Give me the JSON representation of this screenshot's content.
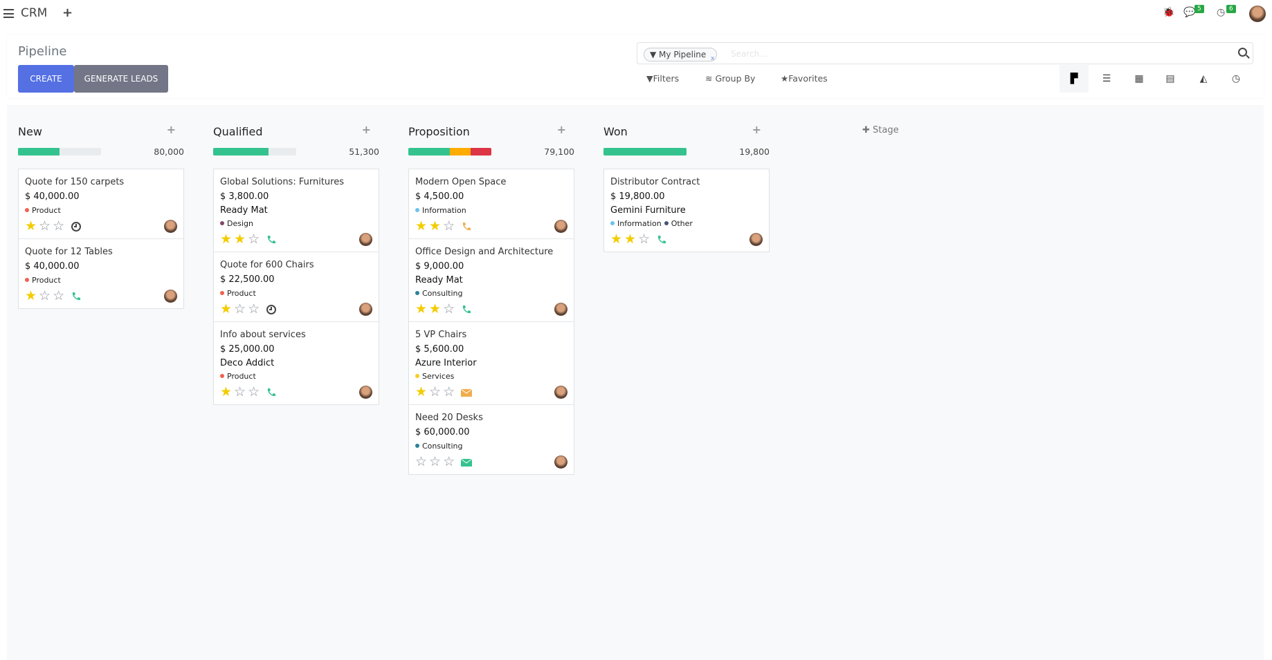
{
  "app": {
    "title": "CRM",
    "new_tab_icon": "plus-icon",
    "messages_count": "5",
    "activities_count": "6"
  },
  "control_panel": {
    "title": "Pipeline",
    "create_label": "CREATE",
    "generate_leads_label": "GENERATE LEADS",
    "search": {
      "facet": "My Pipeline",
      "placeholder": "Search..."
    },
    "filters_label": "Filters",
    "group_by_label": "Group By",
    "favorites_label": "Favorites",
    "views": [
      "kanban",
      "list",
      "calendar",
      "pivot",
      "graph",
      "activity"
    ],
    "active_view": "kanban"
  },
  "colors": {
    "green": "#34c38f",
    "orange": "#ffac00",
    "red": "#dc3545",
    "star": "#f3cc00",
    "accent": "#5470e3"
  },
  "board": {
    "add_stage_label": "Stage",
    "columns": [
      {
        "name": "New",
        "total": "80,000",
        "progress": [
          {
            "color": "#34c38f",
            "pct": 50
          }
        ],
        "cards": [
          {
            "title": "Quote for 150 carpets",
            "amount": "$ 40,000.00",
            "tags": [
              {
                "name": "Product",
                "color": "#f06050"
              }
            ],
            "stars": 1,
            "activity": "clock"
          },
          {
            "title": "Quote for 12 Tables",
            "amount": "$ 40,000.00",
            "tags": [
              {
                "name": "Product",
                "color": "#f06050"
              }
            ],
            "stars": 1,
            "activity": "phone-green"
          }
        ]
      },
      {
        "name": "Qualified",
        "total": "51,300",
        "progress": [
          {
            "color": "#34c38f",
            "pct": 67
          }
        ],
        "cards": [
          {
            "title": "Global Solutions: Furnitures",
            "amount": "$ 3,800.00",
            "company": "Ready Mat",
            "tags": [
              {
                "name": "Design",
                "color": "#814968"
              }
            ],
            "stars": 2,
            "activity": "phone-green"
          },
          {
            "title": "Quote for 600 Chairs",
            "amount": "$ 22,500.00",
            "tags": [
              {
                "name": "Product",
                "color": "#f06050"
              }
            ],
            "stars": 1,
            "activity": "clock"
          },
          {
            "title": "Info about services",
            "amount": "$ 25,000.00",
            "company": "Deco Addict",
            "tags": [
              {
                "name": "Product",
                "color": "#f06050"
              }
            ],
            "stars": 1,
            "activity": "phone-green"
          }
        ]
      },
      {
        "name": "Proposition",
        "total": "79,100",
        "progress": [
          {
            "color": "#34c38f",
            "pct": 50
          },
          {
            "color": "#ffac00",
            "pct": 25
          },
          {
            "color": "#dc3545",
            "pct": 25
          }
        ],
        "cards": [
          {
            "title": "Modern Open Space",
            "amount": "$ 4,500.00",
            "tags": [
              {
                "name": "Information",
                "color": "#6cc1ed"
              }
            ],
            "stars": 2,
            "activity": "phone-orange"
          },
          {
            "title": "Office Design and Architecture",
            "amount": "$ 9,000.00",
            "company": "Ready Mat",
            "tags": [
              {
                "name": "Consulting",
                "color": "#2c8397"
              }
            ],
            "stars": 2,
            "activity": "phone-green"
          },
          {
            "title": "5 VP Chairs",
            "amount": "$ 5,600.00",
            "company": "Azure Interior",
            "tags": [
              {
                "name": "Services",
                "color": "#f7cd1f"
              }
            ],
            "stars": 1,
            "activity": "envelope-orange"
          },
          {
            "title": "Need 20 Desks",
            "amount": "$ 60,000.00",
            "tags": [
              {
                "name": "Consulting",
                "color": "#2c8397"
              }
            ],
            "stars": 0,
            "activity": "envelope-green"
          }
        ]
      },
      {
        "name": "Won",
        "total": "19,800",
        "progress": [
          {
            "color": "#34c38f",
            "pct": 100
          }
        ],
        "cards": [
          {
            "title": "Distributor Contract",
            "amount": "$ 19,800.00",
            "company": "Gemini Furniture",
            "tags": [
              {
                "name": "Information",
                "color": "#6cc1ed"
              },
              {
                "name": "Other",
                "color": "#475577"
              }
            ],
            "stars": 2,
            "activity": "phone-green"
          }
        ]
      }
    ]
  }
}
